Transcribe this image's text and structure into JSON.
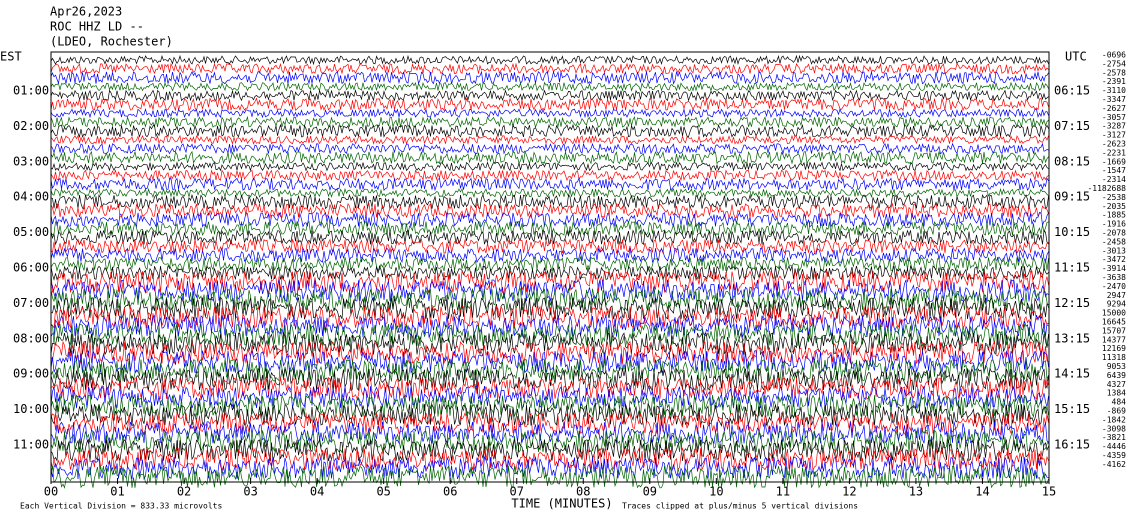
{
  "header": {
    "date": "Apr26,2023",
    "station": "ROC HHZ LD --",
    "location": "(LDEO, Rochester)"
  },
  "left_axis": {
    "title": "EST",
    "labels": [
      "01:00",
      "02:00",
      "03:00",
      "04:00",
      "05:00",
      "06:00",
      "07:00",
      "08:00",
      "09:00",
      "10:00",
      "11:00"
    ]
  },
  "right_axis": {
    "title": "UTC",
    "labels": [
      "06:15",
      "07:15",
      "08:15",
      "09:15",
      "10:15",
      "11:15",
      "12:15",
      "13:15",
      "14:15",
      "15:15",
      "16:15"
    ],
    "offsets": [
      "-0696",
      "-2754",
      "-2578",
      "-2391",
      "-3110",
      "-3347",
      "-2627",
      "-3057",
      "-3287",
      "-3127",
      "-2623",
      "-2231",
      "-1669",
      "-1547",
      "-2314",
      "-1182688",
      "-2538",
      "-2035",
      "-1885",
      "-1916",
      "-2078",
      "-2458",
      "-3013",
      "-3472",
      "-3914",
      "-3638",
      "-2470",
      "2947",
      "9294",
      "15000",
      "16645",
      "15707",
      "14377",
      "12169",
      "11318",
      "9053",
      "6439",
      "4327",
      "1384",
      "484",
      "-869",
      "-1842",
      "-3098",
      "-3821",
      "-4446",
      "-4359",
      "-4162"
    ]
  },
  "x_axis": {
    "title": "TIME (MINUTES)",
    "labels": [
      "00",
      "01",
      "02",
      "03",
      "04",
      "05",
      "06",
      "07",
      "08",
      "09",
      "10",
      "11",
      "12",
      "13",
      "14",
      "15"
    ]
  },
  "footer": {
    "scale": "Each Vertical Division = 833.33 microvolts",
    "clip": "Traces clipped at plus/minus 5 vertical divisions"
  }
}
